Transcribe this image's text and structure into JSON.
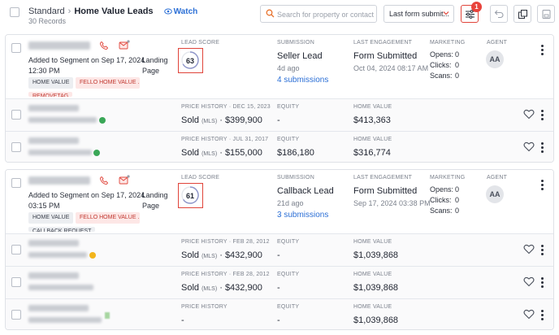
{
  "header": {
    "breadcrumb_root": "Standard",
    "breadcrumb_current": "Home Value Leads",
    "watch_label": "Watch",
    "records": "30 Records",
    "search_placeholder": "Search for property or contact",
    "sort_value": "Last form submit...",
    "filter_badge": "1"
  },
  "labels": {
    "lead_score": "LEAD SCORE",
    "submission": "SUBMISSION",
    "last_engagement": "LAST ENGAGEMENT",
    "marketing": "MARKETING",
    "agent": "AGENT",
    "price_history": "PRICE HISTORY",
    "equity": "EQUITY",
    "home_value": "HOME VALUE",
    "mls": "(MLS)"
  },
  "leads": [
    {
      "segment_line1": "Added to Segment on Sep 17, 2024",
      "segment_line2": "12:30 PM",
      "source": "· Landing",
      "source2": "Page",
      "tags": [
        "HOME VALUE",
        "FELLO HOME VALUE ...",
        "REMOVETAG"
      ],
      "score": 63,
      "submission_type": "Seller Lead",
      "submission_age": "4d ago",
      "submissions_link": "4 submissions",
      "engagement": "Form Submitted",
      "engagement_date": "Oct 04, 2024 08:17 AM",
      "opens_label": "Opens:",
      "opens": "0",
      "clicks_label": "Clicks:",
      "clicks": "0",
      "scans_label": "Scans:",
      "scans": "0",
      "agent": "AA",
      "properties": [
        {
          "price_label": "PRICE HISTORY · DEC 15, 2023",
          "sold_prefix": "Sold",
          "sold_suffix": "· $399,900",
          "equity": "-",
          "home_value": "$413,363",
          "status": "ok"
        },
        {
          "price_label": "PRICE HISTORY · JUL 31, 2017",
          "sold_prefix": "Sold",
          "sold_suffix": "· $155,000",
          "equity": "$186,180",
          "home_value": "$316,774",
          "status": "ok"
        }
      ]
    },
    {
      "segment_line1": "Added to Segment on Sep 17, 2024",
      "segment_line2": "03:15 PM",
      "source": "· Landing",
      "source2": "Page",
      "tags": [
        "HOME VALUE",
        "FELLO HOME VALUE ...",
        "CALLBACK REQUEST"
      ],
      "score": 61,
      "submission_type": "Callback Lead",
      "submission_age": "21d ago",
      "submissions_link": "3 submissions",
      "engagement": "Form Submitted",
      "engagement_date": "Sep 17, 2024 03:38 PM",
      "opens_label": "Opens:",
      "opens": "0",
      "clicks_label": "Clicks:",
      "clicks": "0",
      "scans_label": "Scans:",
      "scans": "0",
      "agent": "AA",
      "properties": [
        {
          "price_label": "PRICE HISTORY · FEB 28, 2012",
          "sold_prefix": "Sold",
          "sold_suffix": "· $432,900",
          "equity": "-",
          "home_value": "$1,039,868",
          "status": "warn"
        },
        {
          "price_label": "PRICE HISTORY · FEB 28, 2012",
          "sold_prefix": "Sold",
          "sold_suffix": "· $432,900",
          "equity": "-",
          "home_value": "$1,039,868",
          "status": "none"
        },
        {
          "price_label": "PRICE HISTORY",
          "sold_prefix": "",
          "sold_suffix": "-",
          "equity": "-",
          "home_value": "$1,039,868",
          "status": "green"
        }
      ]
    }
  ]
}
